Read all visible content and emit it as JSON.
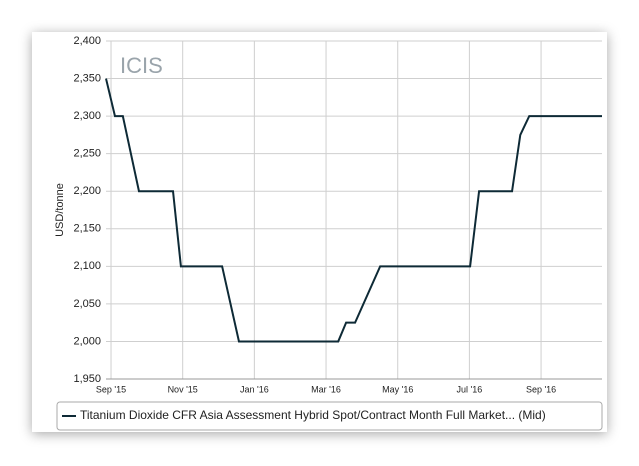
{
  "chart_data": {
    "type": "line",
    "watermark": "ICIS",
    "y_label": "USD/tonne",
    "x": [
      -0.14,
      0.11,
      0.33,
      0.78,
      1.73,
      1.95,
      3.1,
      3.57,
      6.34,
      6.56,
      6.81,
      7.51,
      10.02,
      10.27,
      11.19,
      11.42,
      11.67,
      13.7
    ],
    "series": [
      {
        "name": "Titanium Dioxide CFR Asia Assessment Hybrid Spot/Contract Month Full Market... (Mid)",
        "color": "#0e2a36",
        "values": [
          2350,
          2300,
          2300,
          2200,
          2200,
          2100,
          2100,
          2000,
          2000,
          2025,
          2025,
          2100,
          2100,
          2200,
          2200,
          2275,
          2300,
          2300
        ]
      }
    ],
    "xlim": [
      -0.14,
      13.7
    ],
    "xticks": [
      {
        "value": 0,
        "label": "Sep '15"
      },
      {
        "value": 2,
        "label": "Nov '15"
      },
      {
        "value": 4,
        "label": "Jan '16"
      },
      {
        "value": 6,
        "label": "Mar '16"
      },
      {
        "value": 8,
        "label": "May '16"
      },
      {
        "value": 10,
        "label": "Jul '16"
      },
      {
        "value": 12,
        "label": "Sep '16"
      }
    ],
    "ylim": [
      1950,
      2400
    ],
    "yticks": [
      {
        "value": 1950,
        "label": "1,950"
      },
      {
        "value": 2000,
        "label": "2,000"
      },
      {
        "value": 2050,
        "label": "2,050"
      },
      {
        "value": 2100,
        "label": "2,100"
      },
      {
        "value": 2150,
        "label": "2,150"
      },
      {
        "value": 2200,
        "label": "2,200"
      },
      {
        "value": 2250,
        "label": "2,250"
      },
      {
        "value": 2300,
        "label": "2,300"
      },
      {
        "value": 2350,
        "label": "2,350"
      },
      {
        "value": 2400,
        "label": "2,400"
      }
    ],
    "grid": true
  }
}
